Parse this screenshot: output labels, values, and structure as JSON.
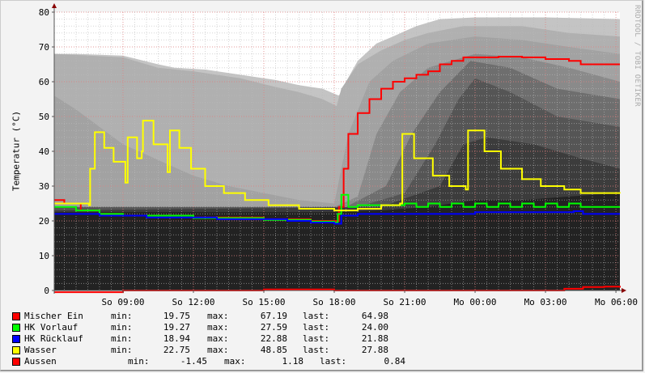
{
  "chart_data": {
    "type": "line",
    "ylabel": "Temperatur (°C)",
    "watermark": "RRDTOOL / TOBI OETIKER",
    "ylim": [
      0,
      80
    ],
    "xlim_hours": [
      6.07,
      30.17
    ],
    "y_ticks": [
      0,
      10,
      20,
      30,
      40,
      50,
      60,
      70,
      80
    ],
    "x_ticks": [
      {
        "h": 9,
        "label": "So 09:00"
      },
      {
        "h": 12,
        "label": "So 12:00"
      },
      {
        "h": 15,
        "label": "So 15:00"
      },
      {
        "h": 18,
        "label": "So 18:00"
      },
      {
        "h": 21,
        "label": "So 21:00"
      },
      {
        "h": 24,
        "label": "Mo 00:00"
      },
      {
        "h": 27,
        "label": "Mo 03:00"
      },
      {
        "h": 30,
        "label": "Mo 06:00"
      }
    ],
    "grid": true,
    "bands": [
      {
        "color": "#c4c4c4",
        "points": [
          [
            6.07,
            68
          ],
          [
            7,
            68
          ],
          [
            9,
            67.5
          ],
          [
            10.5,
            65
          ],
          [
            11.2,
            64
          ],
          [
            12.5,
            63.5
          ],
          [
            14,
            62
          ],
          [
            15.5,
            60.5
          ],
          [
            16.5,
            59
          ],
          [
            17.5,
            58
          ],
          [
            18.2,
            56
          ],
          [
            18.5,
            60
          ],
          [
            19,
            66
          ],
          [
            19.8,
            71
          ],
          [
            20.5,
            73
          ],
          [
            21.5,
            76
          ],
          [
            22.5,
            78
          ],
          [
            24,
            78.5
          ],
          [
            27,
            78.5
          ],
          [
            30.17,
            78
          ]
        ]
      },
      {
        "color": "#b0b0b0",
        "points": [
          [
            6.07,
            68
          ],
          [
            9,
            67
          ],
          [
            10.5,
            64
          ],
          [
            12,
            63
          ],
          [
            14,
            61
          ],
          [
            15.5,
            58.5
          ],
          [
            16.5,
            57
          ],
          [
            17.5,
            55
          ],
          [
            18.1,
            53
          ],
          [
            18.3,
            58
          ],
          [
            19,
            65
          ],
          [
            20,
            69
          ],
          [
            21,
            72
          ],
          [
            22,
            74
          ],
          [
            23.5,
            76
          ],
          [
            26,
            76
          ],
          [
            28,
            74
          ],
          [
            30.17,
            73
          ]
        ]
      },
      {
        "color": "#a2a2a2",
        "points": [
          [
            6.07,
            56
          ],
          [
            7,
            52
          ],
          [
            8,
            47
          ],
          [
            9,
            42
          ],
          [
            10,
            39
          ],
          [
            11,
            36
          ],
          [
            12,
            33
          ],
          [
            13.5,
            30
          ],
          [
            15,
            28
          ],
          [
            16.5,
            26
          ],
          [
            18,
            25
          ],
          [
            18.6,
            45
          ],
          [
            19.5,
            60
          ],
          [
            20.5,
            66
          ],
          [
            22,
            71
          ],
          [
            24,
            73
          ],
          [
            26,
            72
          ],
          [
            28,
            70
          ],
          [
            30.17,
            68
          ]
        ]
      },
      {
        "color": "#8a8a8a",
        "points": [
          [
            6.07,
            24
          ],
          [
            18,
            24
          ],
          [
            19,
            27
          ],
          [
            19.8,
            45
          ],
          [
            20.8,
            57
          ],
          [
            22,
            64
          ],
          [
            24,
            68
          ],
          [
            26,
            67
          ],
          [
            28,
            64
          ],
          [
            30.17,
            60
          ]
        ]
      },
      {
        "color": "#6e6e6e",
        "points": [
          [
            6.07,
            24
          ],
          [
            18.5,
            24
          ],
          [
            20.2,
            30
          ],
          [
            21.3,
            45
          ],
          [
            22.5,
            57
          ],
          [
            23.8,
            66
          ],
          [
            25.5,
            64
          ],
          [
            27.5,
            58
          ],
          [
            30.17,
            55
          ]
        ]
      },
      {
        "color": "#555555",
        "points": [
          [
            6.07,
            24
          ],
          [
            19,
            24
          ],
          [
            21,
            28
          ],
          [
            22.3,
            42
          ],
          [
            23.3,
            55
          ],
          [
            24,
            61
          ],
          [
            25.5,
            57
          ],
          [
            27.5,
            50
          ],
          [
            30.17,
            47
          ]
        ]
      },
      {
        "color": "#3c3c3c",
        "points": [
          [
            6.07,
            23
          ],
          [
            20,
            24
          ],
          [
            22.5,
            30
          ],
          [
            23.5,
            42
          ],
          [
            24.5,
            44
          ],
          [
            26.5,
            42
          ],
          [
            28.5,
            38
          ],
          [
            30.17,
            35
          ]
        ]
      },
      {
        "color": "#222222",
        "points": [
          [
            6.07,
            22.5
          ],
          [
            18,
            22.5
          ],
          [
            20,
            23
          ],
          [
            22,
            24
          ],
          [
            24,
            26
          ],
          [
            26,
            26
          ],
          [
            28,
            27
          ],
          [
            30.17,
            28
          ]
        ]
      }
    ],
    "series": [
      {
        "name": "Mischer Ein",
        "color": "#ff0000",
        "min": "19.75",
        "max": "67.19",
        "last": "64.98",
        "points": [
          [
            6.07,
            26
          ],
          [
            6.5,
            25
          ],
          [
            7.2,
            23
          ],
          [
            8,
            22
          ],
          [
            9,
            21.5
          ],
          [
            12,
            21
          ],
          [
            15,
            20.5
          ],
          [
            17,
            20
          ],
          [
            18,
            20
          ],
          [
            18.2,
            24
          ],
          [
            18.4,
            35
          ],
          [
            18.6,
            45
          ],
          [
            19,
            51
          ],
          [
            19.5,
            55
          ],
          [
            20,
            58
          ],
          [
            20.5,
            60
          ],
          [
            21,
            61
          ],
          [
            21.5,
            62
          ],
          [
            22,
            63
          ],
          [
            22.5,
            65
          ],
          [
            23,
            66
          ],
          [
            23.5,
            67
          ],
          [
            25,
            67.2
          ],
          [
            26,
            67
          ],
          [
            27,
            66.5
          ],
          [
            28,
            66
          ],
          [
            28.5,
            65
          ],
          [
            30.17,
            65
          ]
        ]
      },
      {
        "name": "HK Vorlauf",
        "color": "#00ff00",
        "min": "19.27",
        "max": "27.59",
        "last": "24.00",
        "points": [
          [
            6.07,
            24
          ],
          [
            7,
            23
          ],
          [
            8,
            22
          ],
          [
            9,
            21.5
          ],
          [
            12,
            20.8
          ],
          [
            15,
            20.3
          ],
          [
            17,
            19.8
          ],
          [
            18,
            19.5
          ],
          [
            18.15,
            22
          ],
          [
            18.3,
            27.5
          ],
          [
            18.6,
            24
          ],
          [
            19,
            24.5
          ],
          [
            20,
            24.5
          ],
          [
            21,
            25
          ],
          [
            21.5,
            24
          ],
          [
            22,
            25
          ],
          [
            22.5,
            24
          ],
          [
            23,
            25
          ],
          [
            23.5,
            24
          ],
          [
            24,
            25
          ],
          [
            24.5,
            24
          ],
          [
            25,
            25
          ],
          [
            25.5,
            24
          ],
          [
            26,
            25
          ],
          [
            26.5,
            24
          ],
          [
            27,
            25
          ],
          [
            27.5,
            24
          ],
          [
            28,
            25
          ],
          [
            28.5,
            24
          ],
          [
            30.17,
            24
          ]
        ]
      },
      {
        "name": "HK Rücklauf",
        "color": "#0000ff",
        "min": "18.94",
        "max": "22.88",
        "last": "21.88",
        "points": [
          [
            6.07,
            22
          ],
          [
            8,
            21.5
          ],
          [
            10,
            21
          ],
          [
            13,
            20.5
          ],
          [
            16,
            20
          ],
          [
            17,
            19.5
          ],
          [
            18,
            19.2
          ],
          [
            18.3,
            21.5
          ],
          [
            19,
            22
          ],
          [
            21,
            22
          ],
          [
            23,
            22
          ],
          [
            24,
            22.5
          ],
          [
            26,
            22.5
          ],
          [
            27.5,
            22.5
          ],
          [
            28.2,
            22.8
          ],
          [
            28.6,
            22
          ],
          [
            30.17,
            22
          ]
        ]
      },
      {
        "name": "Wasser",
        "color": "#ffff00",
        "min": "22.75",
        "max": "48.85",
        "last": "27.88",
        "points": [
          [
            6.07,
            25
          ],
          [
            7.55,
            24.5
          ],
          [
            7.6,
            35
          ],
          [
            7.8,
            45.5
          ],
          [
            8.2,
            41
          ],
          [
            8.6,
            37
          ],
          [
            9.1,
            31
          ],
          [
            9.2,
            44
          ],
          [
            9.6,
            38
          ],
          [
            9.8,
            40
          ],
          [
            9.85,
            48.8
          ],
          [
            10.3,
            42
          ],
          [
            10.9,
            34
          ],
          [
            11.0,
            46
          ],
          [
            11.4,
            41
          ],
          [
            11.9,
            35
          ],
          [
            12.5,
            30
          ],
          [
            13.3,
            28
          ],
          [
            14.2,
            26
          ],
          [
            15.2,
            24.5
          ],
          [
            16.5,
            23.5
          ],
          [
            18,
            23
          ],
          [
            19,
            23.5
          ],
          [
            20,
            24.5
          ],
          [
            20.8,
            25
          ],
          [
            20.9,
            45
          ],
          [
            21.4,
            38
          ],
          [
            22.2,
            33
          ],
          [
            22.9,
            30
          ],
          [
            23.6,
            29
          ],
          [
            23.7,
            46
          ],
          [
            24.4,
            40
          ],
          [
            25.1,
            35
          ],
          [
            26,
            32
          ],
          [
            26.8,
            30
          ],
          [
            27.8,
            29
          ],
          [
            28.5,
            28
          ],
          [
            30.17,
            27.9
          ]
        ]
      },
      {
        "name": "Aussen",
        "color": "#ff0000",
        "min": "-1.45",
        "max": "1.18",
        "last": "0.84",
        "points": [
          [
            6.07,
            -0.5
          ],
          [
            7,
            -0.5
          ],
          [
            9,
            0
          ],
          [
            15,
            0.3
          ],
          [
            18,
            0
          ],
          [
            21,
            0
          ],
          [
            24,
            0
          ],
          [
            27,
            0
          ],
          [
            27.8,
            0.5
          ],
          [
            28.6,
            1
          ],
          [
            29.5,
            1.1
          ],
          [
            30.17,
            0.8
          ]
        ]
      }
    ]
  },
  "legend_labels": {
    "min": "min:",
    "max": "max:",
    "last": "last:"
  }
}
